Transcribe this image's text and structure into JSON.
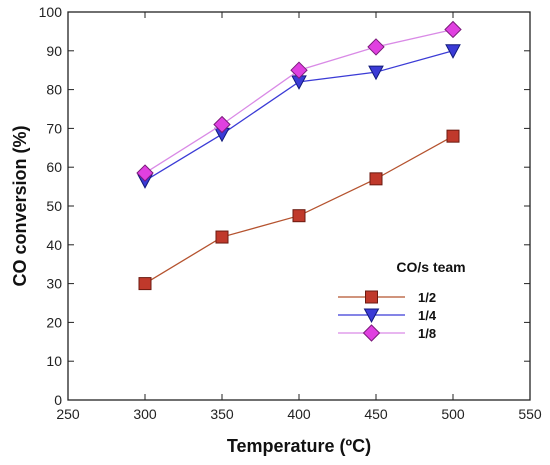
{
  "chart_data": {
    "type": "line",
    "xlabel": "Temperature (ºC)",
    "ylabel": "CO conversion (%)",
    "xlim": [
      250,
      550
    ],
    "ylim": [
      0,
      100
    ],
    "x_ticks": [
      250,
      300,
      350,
      400,
      450,
      500,
      550
    ],
    "y_ticks": [
      0,
      10,
      20,
      30,
      40,
      50,
      60,
      70,
      80,
      90,
      100
    ],
    "grid": false,
    "legend": {
      "title": "CO/s team",
      "placement": "lower-right"
    },
    "x": [
      300,
      350,
      400,
      450,
      500
    ],
    "series": [
      {
        "name": "1/2",
        "values": [
          30,
          42,
          47.5,
          57,
          68
        ],
        "color": "#c0392b",
        "line_color": "#b5532f",
        "marker": "square"
      },
      {
        "name": "1/4",
        "values": [
          56.5,
          68.5,
          82,
          84.5,
          90
        ],
        "color": "#3b3bd6",
        "line_color": "#3b3bd6",
        "marker": "triangle-down"
      },
      {
        "name": "1/8",
        "values": [
          58.5,
          71,
          85,
          91,
          95.5
        ],
        "color": "#e040e0",
        "line_color": "#d98ae6",
        "marker": "diamond"
      }
    ]
  }
}
